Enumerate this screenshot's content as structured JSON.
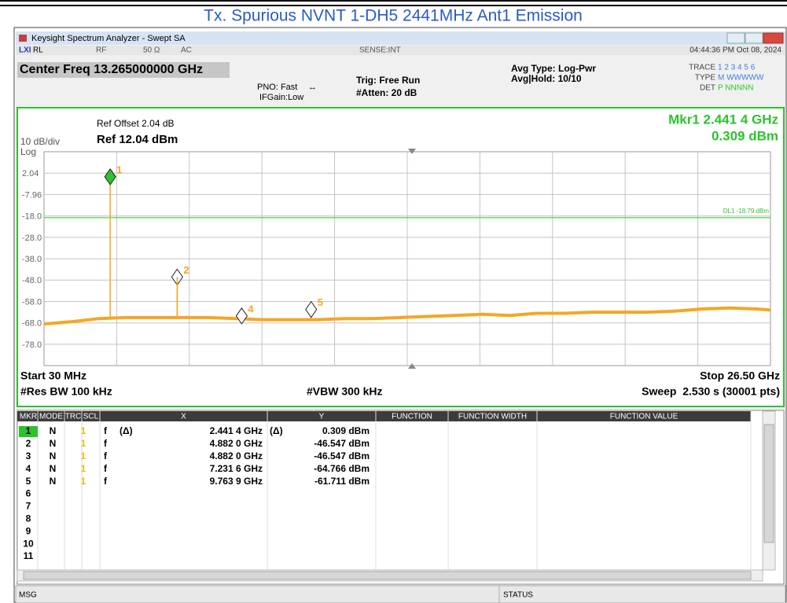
{
  "page_title": "Tx. Spurious NVNT 1-DH5 2441MHz Ant1 Emission",
  "window": {
    "title": "Keysight Spectrum Analyzer - Swept SA"
  },
  "status_row": {
    "rl": "RL",
    "rf": "RF",
    "impedance": "50 Ω",
    "coupling": "AC",
    "sense": "SENSE:INT",
    "datetime": "04:44:36 PM Oct 08, 2024"
  },
  "header": {
    "center_freq": "Center Freq 13.265000000 GHz",
    "pno": "PNO: Fast",
    "ifgain": "IFGain:Low",
    "trig": "Trig: Free Run",
    "atten": "#Atten: 20 dB",
    "avg_type": "Avg Type: Log-Pwr",
    "avg_hold": "Avg|Hold: 10/10",
    "trace_label": "TRACE",
    "trace_numbers": "1 2 3 4 5 6",
    "type_label": "TYPE",
    "type_value": "M WWWWW",
    "det_label": "DET",
    "det_value": "P NNNNN"
  },
  "chart_data": {
    "type": "line",
    "ref_offset": "Ref Offset 2.04 dB",
    "scale": "10 dB/div",
    "ref_level": "Ref 12.04 dBm",
    "scale_type": "Log",
    "marker_readout_freq": "Mkr1 2.441 4 GHz",
    "marker_readout_level": "0.309 dBm",
    "xlim": [
      0.03,
      26.5
    ],
    "ylim": [
      -87.96,
      12.04
    ],
    "yticks": [
      2.04,
      -7.96,
      {
        "value": -18,
        "label": "-18.0"
      },
      {
        "value": -28,
        "label": "-28.0"
      },
      {
        "value": -38,
        "label": "-38.0"
      },
      {
        "value": -48,
        "label": "-48.0"
      },
      {
        "value": -58,
        "label": "-58.0"
      },
      {
        "value": -68,
        "label": "-68.0"
      },
      {
        "value": -78,
        "label": "-78.0"
      }
    ],
    "grid": true,
    "display_line": {
      "label": "DL1 -18.79 dBm",
      "value": -18.79,
      "color": "#2ec22e"
    },
    "x": [
      0.03,
      1,
      2,
      3,
      4,
      5,
      6,
      7,
      8,
      9,
      10,
      11,
      12,
      13,
      14,
      15,
      16,
      17,
      18,
      19,
      20,
      21,
      22,
      23,
      24,
      25,
      26,
      26.5
    ],
    "series": [
      {
        "color": "#f5a623",
        "values": [
          -68.5,
          -67.5,
          -66,
          -65.5,
          -65.5,
          -65.5,
          -65.5,
          -66,
          -66.5,
          -66.5,
          -66.5,
          -66,
          -66,
          -65.5,
          -65,
          -64.5,
          -64,
          -64.5,
          -63.5,
          -63.5,
          -63,
          -63,
          -63,
          -62.5,
          -61.5,
          -61,
          -61.5,
          -62
        ]
      }
    ],
    "start": "Start 30 MHz",
    "stop": "Stop 26.50 GHz",
    "rbw": "#Res BW 100 kHz",
    "vbw": "#VBW 300 kHz",
    "sweep": "Sweep  2.530 s (30001 pts)"
  },
  "marker_table": {
    "columns": [
      "MKR",
      "MODE",
      "TRC",
      "SCL",
      "X",
      "Y",
      "FUNCTION",
      "FUNCTION WIDTH",
      "FUNCTION VALUE"
    ],
    "rows": [
      {
        "mkr": "1",
        "mode": "N",
        "trc": "1",
        "scl": "f",
        "x_func": "(Δ)",
        "x": {
          "value": 2.4414,
          "label": "2.441 4 GHz"
        },
        "y_func": "(Δ)",
        "y": {
          "value": 0.309,
          "label": "0.309 dBm"
        }
      },
      {
        "mkr": "2",
        "mode": "N",
        "trc": "1",
        "scl": "f",
        "x": {
          "value": 4.882,
          "label": "4.882 0 GHz"
        },
        "y": {
          "value": -46.547,
          "label": "-46.547 dBm"
        }
      },
      {
        "mkr": "3",
        "mode": "N",
        "trc": "1",
        "scl": "f",
        "x": {
          "value": 4.882,
          "label": "4.882 0 GHz"
        },
        "y": {
          "value": -46.547,
          "label": "-46.547 dBm"
        }
      },
      {
        "mkr": "4",
        "mode": "N",
        "trc": "1",
        "scl": "f",
        "x": {
          "value": 7.2316,
          "label": "7.231 6 GHz"
        },
        "y": {
          "value": -64.766,
          "label": "-64.766 dBm"
        }
      },
      {
        "mkr": "5",
        "mode": "N",
        "trc": "1",
        "scl": "f",
        "x": {
          "value": 9.7639,
          "label": "9.763 9 GHz"
        },
        "y": {
          "value": -61.711,
          "label": "-61.711 dBm"
        }
      },
      {
        "mkr": "6"
      },
      {
        "mkr": "7"
      },
      {
        "mkr": "8"
      },
      {
        "mkr": "9"
      },
      {
        "mkr": "10"
      },
      {
        "mkr": "11"
      }
    ]
  },
  "status_bar": {
    "msg": "MSG",
    "status": "STATUS"
  }
}
